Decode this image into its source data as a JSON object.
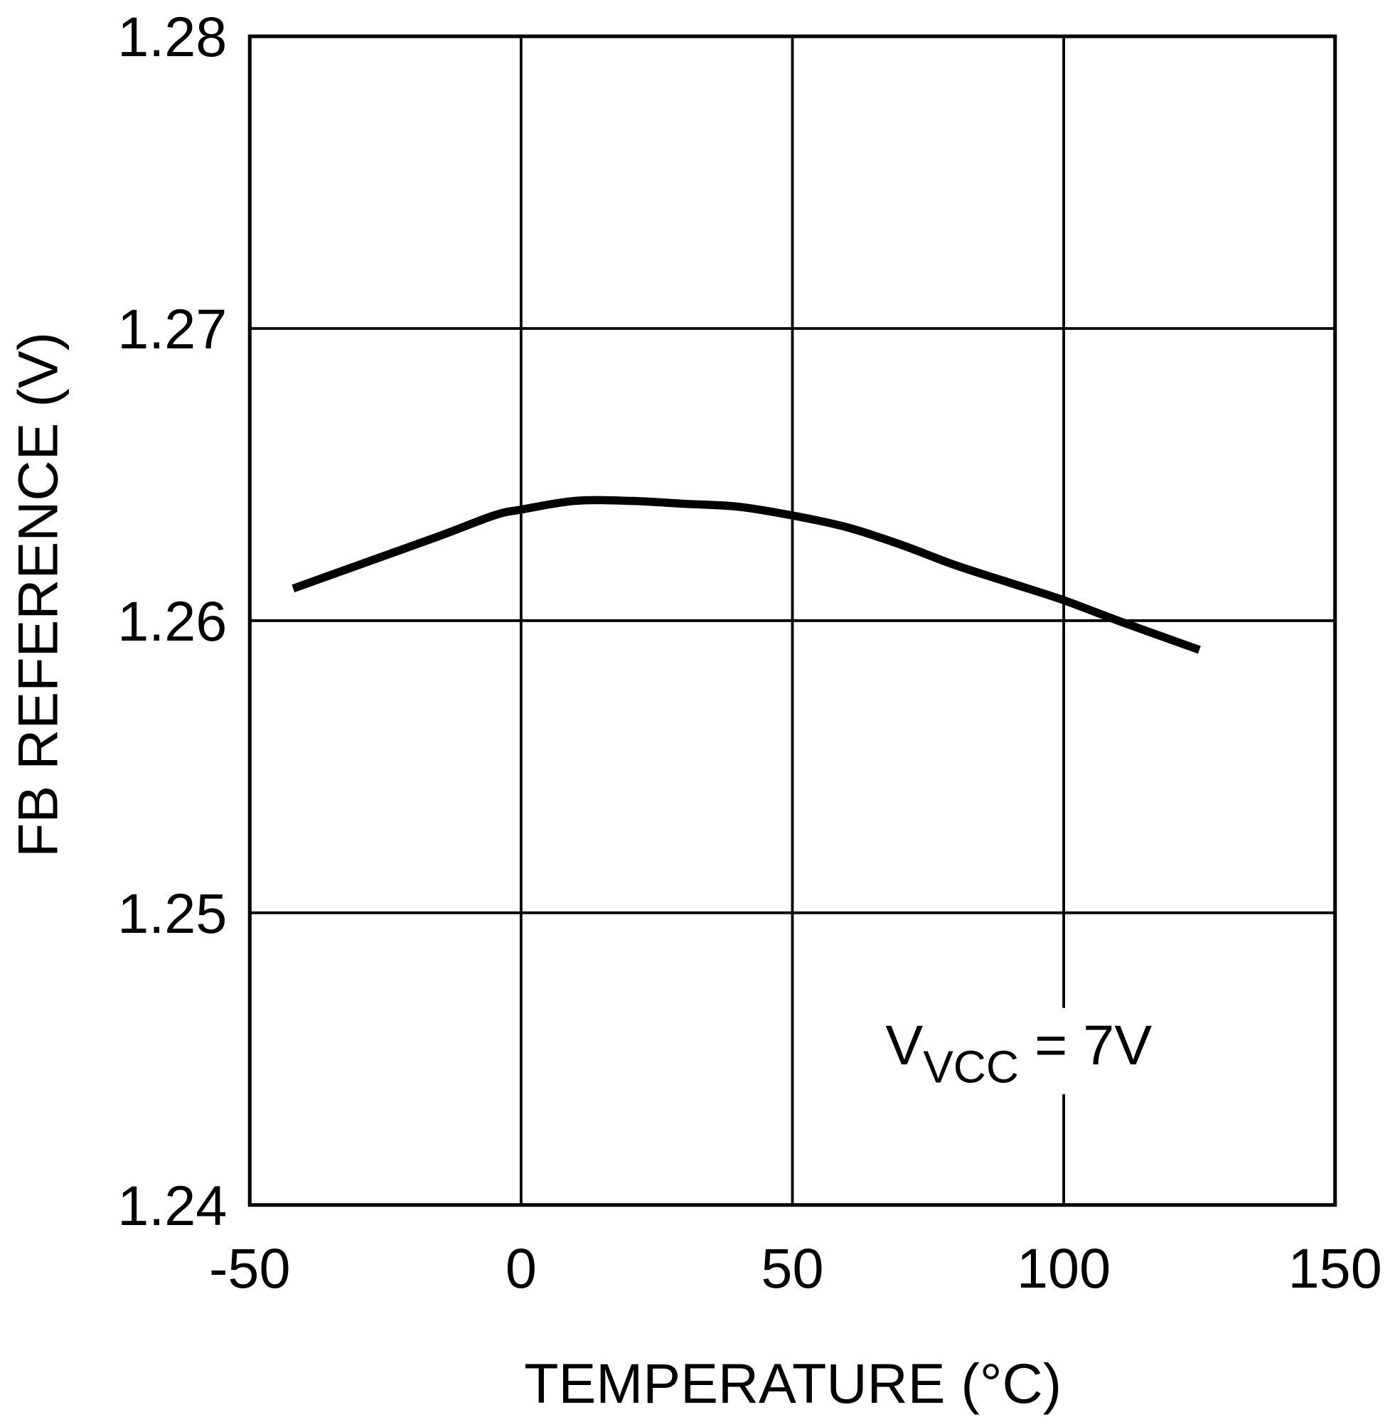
{
  "chart_data": {
    "type": "line",
    "xlabel": "TEMPERATURE (°C)",
    "ylabel": "FB REFERENCE (V)",
    "xlim": [
      -50,
      150
    ],
    "ylim": [
      1.24,
      1.28
    ],
    "xticks": [
      "-50",
      "0",
      "50",
      "100",
      "150"
    ],
    "yticks": [
      "1.24",
      "1.25",
      "1.26",
      "1.27",
      "1.28"
    ],
    "grid": true,
    "annotation": {
      "main": "V",
      "sub": "VCC",
      "rest": " = 7V"
    },
    "series": [
      {
        "color": "#000000",
        "x": [
          -42,
          -30,
          -15,
          -5,
          0,
          10,
          20,
          30,
          40,
          50,
          60,
          70,
          80,
          90,
          100,
          110,
          125
        ],
        "y": [
          1.2611,
          1.2619,
          1.2629,
          1.2636,
          1.2638,
          1.2641,
          1.2641,
          1.264,
          1.2639,
          1.2636,
          1.2632,
          1.2626,
          1.2619,
          1.2613,
          1.2607,
          1.26,
          1.259
        ]
      }
    ]
  }
}
